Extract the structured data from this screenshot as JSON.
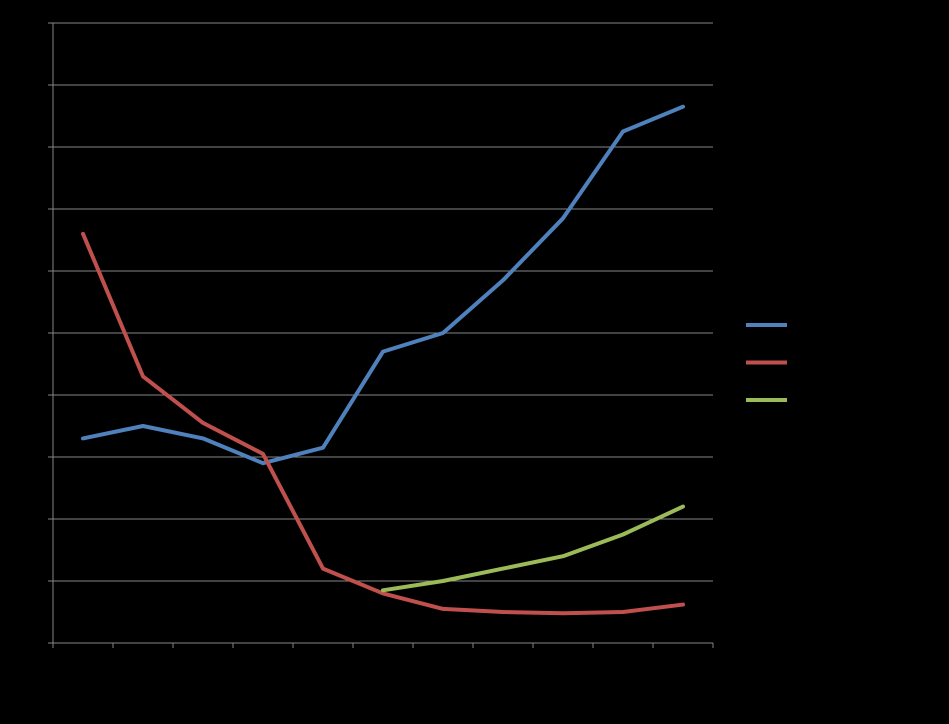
{
  "chart_data": {
    "type": "line",
    "title": "",
    "xlabel": "",
    "ylabel": "",
    "grid": true,
    "legend_position": "right",
    "ylim": [
      0,
      10
    ],
    "x_category_count": 11,
    "categories": [
      "",
      "",
      "",
      "",
      "",
      "",
      "",
      "",
      "",
      "",
      ""
    ],
    "series": [
      {
        "color": "#4f81bd",
        "values": [
          3.3,
          3.5,
          3.3,
          2.9,
          3.15,
          4.7,
          5.0,
          5.85,
          6.85,
          8.25,
          8.65
        ]
      },
      {
        "color": "#c0504d",
        "values": [
          6.6,
          4.3,
          3.55,
          3.05,
          1.2,
          0.8,
          0.55,
          0.5,
          0.48,
          0.5,
          0.62
        ]
      },
      {
        "color": "#9bbb59",
        "values": [
          null,
          null,
          null,
          null,
          null,
          0.85,
          1.0,
          1.2,
          1.4,
          1.75,
          2.2
        ]
      }
    ]
  }
}
